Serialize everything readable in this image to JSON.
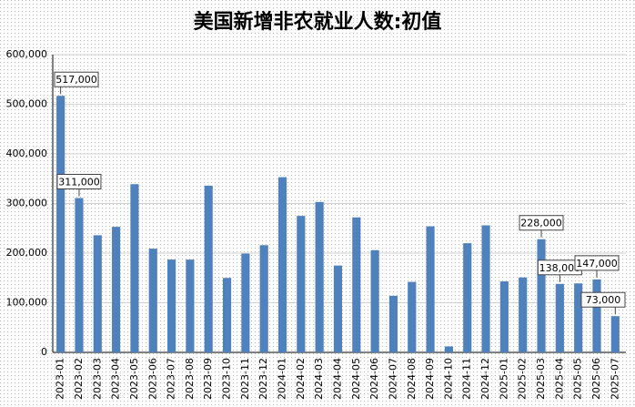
{
  "chart_data": {
    "type": "bar",
    "title": "美国新增非农就业人数:初值",
    "categories": [
      "2023-01",
      "2023-02",
      "2023-03",
      "2023-04",
      "2023-05",
      "2023-06",
      "2023-07",
      "2023-08",
      "2023-09",
      "2023-10",
      "2023-11",
      "2023-12",
      "2024-01",
      "2024-02",
      "2024-03",
      "2024-04",
      "2024-05",
      "2024-06",
      "2024-07",
      "2024-08",
      "2024-09",
      "2024-10",
      "2024-11",
      "2024-12",
      "2025-01",
      "2025-02",
      "2025-03",
      "2025-04",
      "2025-05",
      "2025-06",
      "2025-07"
    ],
    "values": [
      517000,
      311000,
      236000,
      253000,
      339000,
      209000,
      187000,
      187000,
      336000,
      150000,
      199000,
      216000,
      353000,
      275000,
      303000,
      175000,
      272000,
      206000,
      114000,
      142000,
      254000,
      12000,
      220000,
      256000,
      143000,
      151000,
      228000,
      138000,
      139000,
      147000,
      73000
    ],
    "value_labels": [
      "517,000",
      "311,000",
      null,
      null,
      null,
      null,
      null,
      null,
      null,
      null,
      null,
      null,
      null,
      null,
      null,
      null,
      null,
      null,
      null,
      null,
      null,
      null,
      null,
      null,
      null,
      null,
      "228,000",
      "138,000",
      null,
      "147,000",
      "73,000"
    ],
    "color": "#4f81bd",
    "ylim": [
      0,
      600000
    ],
    "yticks": [
      {
        "value": 0,
        "label": "0"
      },
      {
        "value": 100000,
        "label": "100,000"
      },
      {
        "value": 200000,
        "label": "200,000"
      },
      {
        "value": 300000,
        "label": "300,000"
      },
      {
        "value": 400000,
        "label": "400,000"
      },
      {
        "value": 500000,
        "label": "500,000"
      },
      {
        "value": 600000,
        "label": "600,000"
      }
    ],
    "grid": true
  }
}
